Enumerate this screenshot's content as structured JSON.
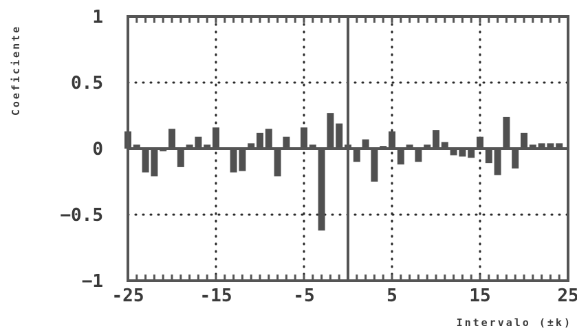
{
  "chart_data": {
    "type": "bar",
    "title": "",
    "xlabel": "Intervalo (±k)",
    "ylabel": "Coeficiente",
    "xlim": [
      -25,
      25
    ],
    "ylim": [
      -1,
      1
    ],
    "xticks": [
      -25,
      -15,
      -5,
      5,
      15,
      25
    ],
    "xtick_labels": [
      "-25",
      "-15",
      "-5",
      "5",
      "15",
      "25"
    ],
    "yticks": [
      1,
      0.5,
      0,
      -0.5,
      -1
    ],
    "ytick_labels": [
      "1",
      "0.5",
      "0",
      "−0.5",
      "−1"
    ],
    "grid": true,
    "x": [
      -25,
      -24,
      -23,
      -22,
      -21,
      -20,
      -19,
      -18,
      -17,
      -16,
      -15,
      -14,
      -13,
      -12,
      -11,
      -10,
      -9,
      -8,
      -7,
      -6,
      -5,
      -4,
      -3,
      -2,
      -1,
      0,
      1,
      2,
      3,
      4,
      5,
      6,
      7,
      8,
      9,
      10,
      11,
      12,
      13,
      14,
      15,
      16,
      17,
      18,
      19,
      20,
      21,
      22,
      23,
      24,
      25
    ],
    "values": [
      0.13,
      0.03,
      -0.18,
      -0.21,
      -0.02,
      0.15,
      -0.14,
      0.03,
      0.09,
      0.03,
      0.16,
      -0.01,
      -0.18,
      -0.17,
      0.04,
      0.12,
      0.15,
      -0.21,
      0.09,
      0.0,
      0.16,
      0.03,
      -0.62,
      0.27,
      0.19,
      0.03,
      -0.1,
      0.07,
      -0.25,
      0.02,
      0.13,
      -0.12,
      0.03,
      -0.1,
      0.03,
      0.14,
      0.05,
      -0.05,
      -0.06,
      -0.07,
      0.09,
      -0.11,
      -0.2,
      0.24,
      -0.15,
      0.12,
      0.03,
      0.04,
      0.04,
      0.04,
      0.0
    ],
    "colors": {
      "bar": "#505050",
      "axis": "#555555",
      "grid": "#2a2a2a",
      "text": "#3a3a3a"
    }
  }
}
